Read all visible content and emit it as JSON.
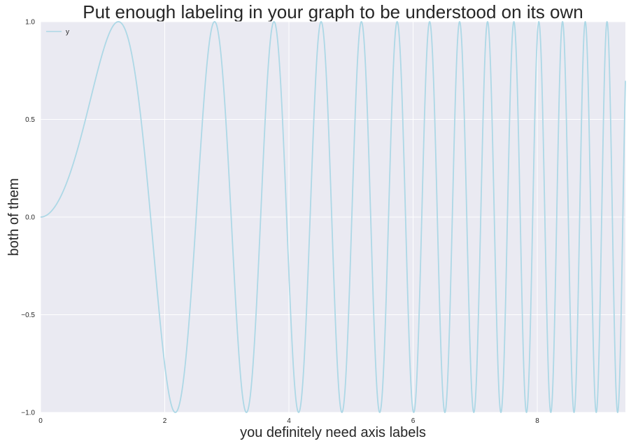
{
  "chart_data": {
    "type": "line",
    "title": "Put enough labeling in your graph to be understood on its own",
    "xlabel": "you definitely need axis labels",
    "ylabel": "both of them",
    "xlim": [
      0,
      9.42
    ],
    "ylim": [
      -1.0,
      1.0
    ],
    "x_ticks": [
      0,
      2,
      4,
      6,
      8
    ],
    "y_ticks": [
      -1.0,
      -0.5,
      0.0,
      0.5,
      1.0
    ],
    "x_tick_labels": [
      "0",
      "2",
      "4",
      "6",
      "8"
    ],
    "y_tick_labels": [
      "−1.0",
      "−0.5",
      "0.0",
      "0.5",
      "1.0"
    ],
    "grid": true,
    "legend_position": "top-left",
    "series": [
      {
        "name": "y",
        "color": "#add8e6",
        "function": "sin(x^2)",
        "x": [
          0,
          0.5,
          1.0,
          1.25,
          1.5,
          2.0,
          2.17,
          2.5,
          2.8,
          3.0,
          3.07,
          3.5,
          3.75,
          4.0,
          4.1,
          4.5,
          5.0,
          5.15,
          6.0,
          7.0,
          8.0,
          9.0,
          9.42
        ],
        "y": [
          0,
          0.25,
          0.84,
          1.0,
          0.78,
          -0.76,
          -1.0,
          0.03,
          1.0,
          0.41,
          -0.02,
          -0.31,
          1.0,
          -0.29,
          -0.93,
          0.97,
          -0.13,
          0.99,
          -0.99,
          -0.95,
          0.92,
          -0.63,
          0.76
        ]
      }
    ]
  }
}
